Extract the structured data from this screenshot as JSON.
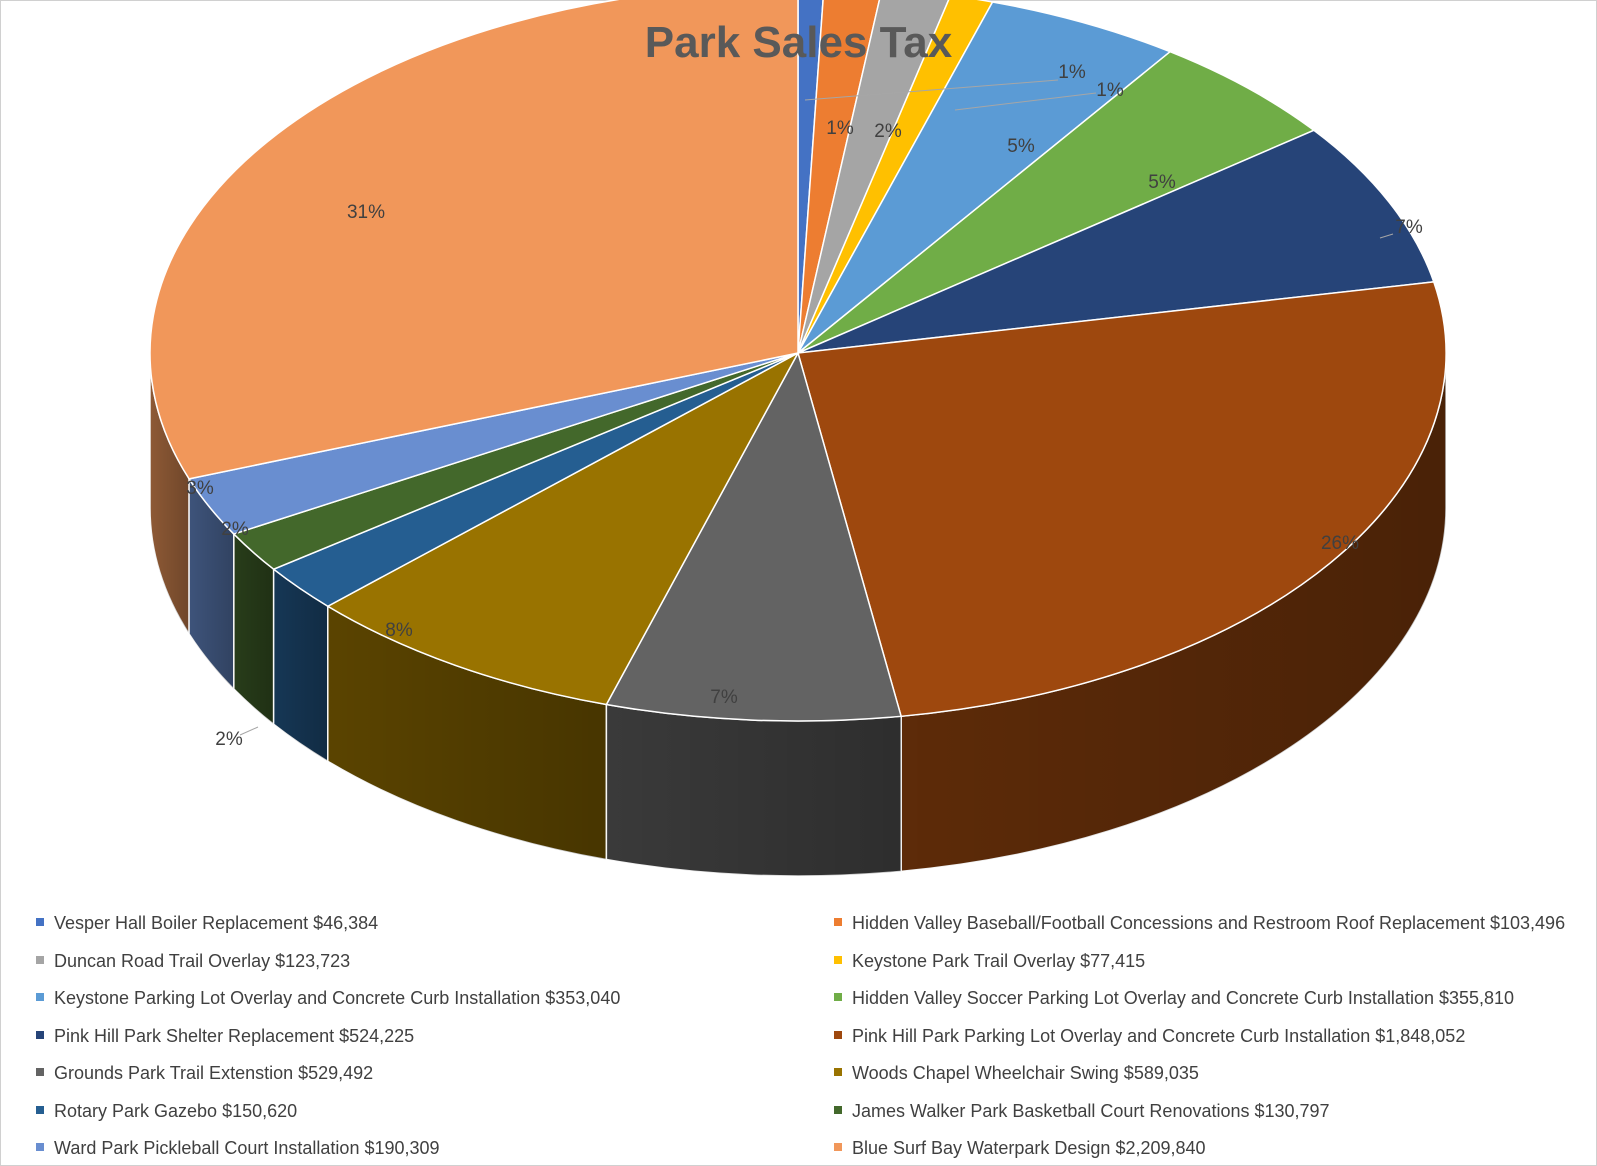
{
  "chart_data": {
    "type": "pie",
    "title": "Park Sales Tax",
    "slices": [
      {
        "label": "Vesper Hall Boiler Replacement",
        "amount": "$46,384",
        "value": 46384,
        "percent_label": "1%",
        "color": "#4472C4"
      },
      {
        "label": "Hidden Valley Baseball/Football Concessions and Restroom Roof Replacement",
        "amount": "$103,496",
        "value": 103496,
        "percent_label": "1%",
        "color": "#ED7D31"
      },
      {
        "label": "Duncan Road Trail Overlay",
        "amount": "$123,723",
        "value": 123723,
        "percent_label": "2%",
        "color": "#A5A5A5"
      },
      {
        "label": "Keystone Park Trail Overlay",
        "amount": "$77,415",
        "value": 77415,
        "percent_label": "1%",
        "color": "#FFC000"
      },
      {
        "label": "Keystone Parking Lot Overlay and Concrete Curb Installation",
        "amount": "$353,040",
        "value": 353040,
        "percent_label": "5%",
        "color": "#5B9BD5"
      },
      {
        "label": "Hidden Valley Soccer Parking Lot Overlay and Concrete Curb Installation",
        "amount": "$355,810",
        "value": 355810,
        "percent_label": "5%",
        "color": "#70AD47"
      },
      {
        "label": "Pink Hill Park Shelter Replacement",
        "amount": "$524,225",
        "value": 524225,
        "percent_label": "7%",
        "color": "#264478"
      },
      {
        "label": "Pink Hill Park Parking Lot Overlay and Concrete Curb Installation",
        "amount": "$1,848,052",
        "value": 1848052,
        "percent_label": "26%",
        "color": "#9E480E"
      },
      {
        "label": "Grounds Park Trail Extenstion",
        "amount": "$529,492",
        "value": 529492,
        "percent_label": "7%",
        "color": "#636363"
      },
      {
        "label": "Woods Chapel Wheelchair Swing",
        "amount": "$589,035",
        "value": 589035,
        "percent_label": "8%",
        "color": "#997300"
      },
      {
        "label": "Rotary Park Gazebo",
        "amount": "$150,620",
        "value": 150620,
        "percent_label": "2%",
        "color": "#255E91"
      },
      {
        "label": "James Walker Park Basketball Court Renovations",
        "amount": "$130,797",
        "value": 130797,
        "percent_label": "2%",
        "color": "#43682B"
      },
      {
        "label": "Ward Park Pickleball Court Installation",
        "amount": "$190,309",
        "value": 190309,
        "percent_label": "3%",
        "color": "#698ED0"
      },
      {
        "label": "Blue Surf Bay Waterpark Design",
        "amount": "$2,209,840",
        "value": 2209840,
        "percent_label": "31%",
        "color": "#F1975A"
      }
    ],
    "legend_position": "bottom"
  }
}
